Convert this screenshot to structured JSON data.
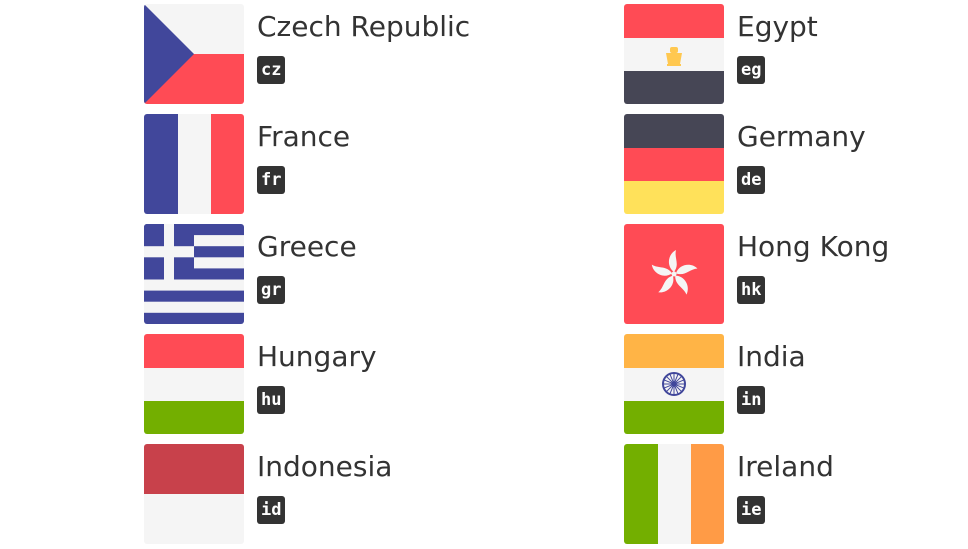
{
  "countries": [
    {
      "name": "Czech Republic",
      "code": "cz"
    },
    {
      "name": "Egypt",
      "code": "eg"
    },
    {
      "name": "France",
      "code": "fr"
    },
    {
      "name": "Germany",
      "code": "de"
    },
    {
      "name": "Greece",
      "code": "gr"
    },
    {
      "name": "Hong Kong",
      "code": "hk"
    },
    {
      "name": "Hungary",
      "code": "hu"
    },
    {
      "name": "India",
      "code": "in"
    },
    {
      "name": "Indonesia",
      "code": "id"
    },
    {
      "name": "Ireland",
      "code": "ie"
    }
  ],
  "colors": {
    "red": "#ff4b55",
    "white": "#f5f5f5",
    "blue": "#41479b",
    "dark": "#464655",
    "yellow": "#ffe15a",
    "green": "#73af00",
    "orange": "#ffb446",
    "irish_orange": "#ff9b46",
    "indonesia_red": "#c8414b"
  }
}
